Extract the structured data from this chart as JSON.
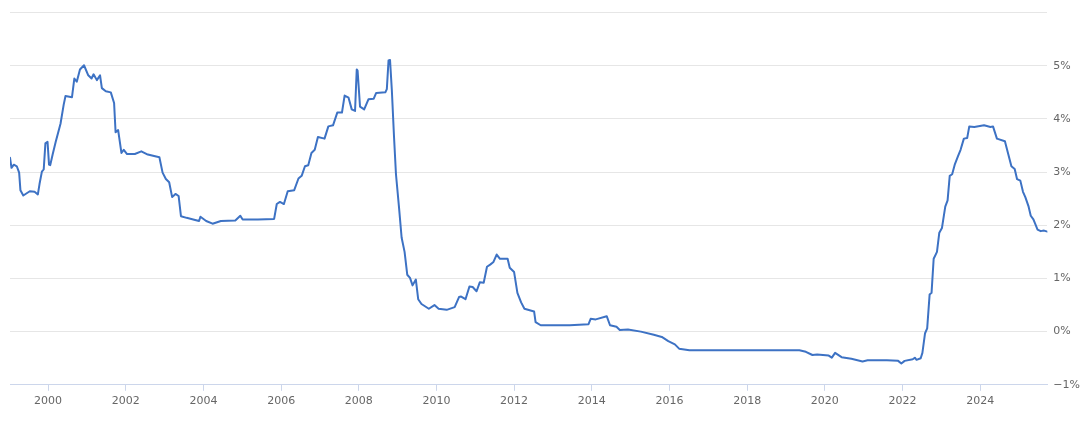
{
  "chart_data": {
    "type": "line",
    "color": "#3d72c4",
    "marker": "none",
    "line_style": "solid",
    "grid": "y",
    "xlim": [
      "1999-01-08",
      "2025-09-24"
    ],
    "xticks": [
      "2000",
      "2002",
      "2004",
      "2006",
      "2008",
      "2010",
      "2012",
      "2014",
      "2016",
      "2018",
      "2020",
      "2022",
      "2024"
    ],
    "ylim": [
      -1,
      6
    ],
    "yticks": [
      {
        "value": -1,
        "label": "−1%"
      },
      {
        "value": 0,
        "label": "0%"
      },
      {
        "value": 1,
        "label": "1%"
      },
      {
        "value": 2,
        "label": "2%"
      },
      {
        "value": 3,
        "label": "3%"
      },
      {
        "value": 4,
        "label": "4%"
      },
      {
        "value": 5,
        "label": "5%"
      },
      {
        "value": 6,
        "label": null
      }
    ],
    "x": [
      "1999-01-08",
      "1999-01-22",
      "1999-02-13",
      "1999-03-13",
      "1999-04-04",
      "1999-04-16",
      "1999-05-13",
      "1999-07-13",
      "1999-08-27",
      "1999-09-27",
      "1999-10-13",
      "1999-11-04",
      "1999-11-21",
      "1999-12-07",
      "1999-12-27",
      "2000-01-10",
      "2000-01-21",
      "2000-02-13",
      "2000-03-13",
      "2000-04-27",
      "2000-05-27",
      "2000-06-13",
      "2000-08-13",
      "2000-09-04",
      "2000-09-27",
      "2000-10-27",
      "2000-12-04",
      "2001-01-13",
      "2001-02-13",
      "2001-03-04",
      "2001-04-04",
      "2001-05-04",
      "2001-05-21",
      "2001-06-27",
      "2001-08-13",
      "2001-09-13",
      "2001-09-27",
      "2001-10-21",
      "2001-11-21",
      "2001-12-13",
      "2002-01-13",
      "2002-03-27",
      "2002-05-27",
      "2002-07-27",
      "2002-11-13",
      "2002-12-13",
      "2003-01-13",
      "2003-02-13",
      "2003-03-13",
      "2003-04-13",
      "2003-05-13",
      "2003-06-04",
      "2003-07-27",
      "2003-09-27",
      "2003-11-21",
      "2003-12-04",
      "2004-01-27",
      "2004-03-27",
      "2004-06-13",
      "2004-10-27",
      "2004-12-13",
      "2005-01-04",
      "2005-05-27",
      "2005-10-27",
      "2005-11-21",
      "2005-12-21",
      "2006-01-27",
      "2006-03-04",
      "2006-05-04",
      "2006-06-13",
      "2006-07-13",
      "2006-08-13",
      "2006-09-13",
      "2006-10-13",
      "2006-11-13",
      "2006-12-13",
      "2007-02-13",
      "2007-03-21",
      "2007-05-04",
      "2007-06-13",
      "2007-07-27",
      "2007-08-21",
      "2007-09-27",
      "2007-10-27",
      "2007-11-27",
      "2007-12-13",
      "2007-12-21",
      "2008-01-13",
      "2008-02-21",
      "2008-04-01",
      "2008-05-21",
      "2008-06-13",
      "2008-09-07",
      "2008-09-21",
      "2008-10-07",
      "2008-10-21",
      "2008-11-07",
      "2008-11-27",
      "2008-12-16",
      "2009-01-13",
      "2009-02-07",
      "2009-03-07",
      "2009-04-01",
      "2009-04-27",
      "2009-05-21",
      "2009-06-21",
      "2009-07-13",
      "2009-08-13",
      "2009-10-21",
      "2009-12-13",
      "2010-01-21",
      "2010-04-07",
      "2010-06-21",
      "2010-08-01",
      "2010-08-21",
      "2010-10-01",
      "2010-11-07",
      "2010-12-07",
      "2011-01-13",
      "2011-02-13",
      "2011-03-21",
      "2011-04-21",
      "2011-05-21",
      "2011-06-21",
      "2011-07-21",
      "2011-08-21",
      "2011-11-01",
      "2011-11-21",
      "2012-01-01",
      "2012-02-01",
      "2012-03-07",
      "2012-04-07",
      "2012-07-07",
      "2012-07-21",
      "2012-09-07",
      "2013-06-07",
      "2013-12-01",
      "2013-12-21",
      "2014-02-07",
      "2014-05-21",
      "2014-06-21",
      "2014-08-21",
      "2014-09-21",
      "2014-12-07",
      "2015-04-07",
      "2015-08-07",
      "2015-10-21",
      "2015-12-21",
      "2016-02-21",
      "2016-04-01",
      "2016-07-07",
      "2018-01-01",
      "2019-05-07",
      "2019-07-07",
      "2019-09-07",
      "2019-10-21",
      "2020-02-07",
      "2020-03-07",
      "2020-04-07",
      "2020-06-07",
      "2020-09-07",
      "2020-12-21",
      "2021-02-07",
      "2021-08-07",
      "2021-11-21",
      "2021-12-21",
      "2022-01-21",
      "2022-04-07",
      "2022-04-27",
      "2022-05-13",
      "2022-06-21",
      "2022-07-07",
      "2022-08-01",
      "2022-08-21",
      "2022-09-13",
      "2022-10-01",
      "2022-10-21",
      "2022-11-21",
      "2022-12-13",
      "2023-01-07",
      "2023-02-07",
      "2023-03-01",
      "2023-03-21",
      "2023-04-13",
      "2023-05-07",
      "2023-06-07",
      "2023-07-01",
      "2023-08-01",
      "2023-09-01",
      "2023-09-21",
      "2023-11-07",
      "2024-02-07",
      "2024-04-07",
      "2024-05-01",
      "2024-06-07",
      "2024-08-21",
      "2024-10-21",
      "2024-11-21",
      "2024-12-13",
      "2025-01-13",
      "2025-02-07",
      "2025-03-01",
      "2025-04-01",
      "2025-04-21",
      "2025-05-16",
      "2025-06-24",
      "2025-07-24",
      "2025-08-24",
      "2025-09-24"
    ],
    "values": [
      3.27,
      3.08,
      3.14,
      3.11,
      2.99,
      2.66,
      2.56,
      2.64,
      2.63,
      2.58,
      2.78,
      3.01,
      3.05,
      3.54,
      3.57,
      3.14,
      3.13,
      3.33,
      3.57,
      3.91,
      4.27,
      4.43,
      4.41,
      4.76,
      4.7,
      4.93,
      5.01,
      4.82,
      4.76,
      4.84,
      4.73,
      4.82,
      4.58,
      4.52,
      4.5,
      4.3,
      3.75,
      3.79,
      3.36,
      3.42,
      3.34,
      3.34,
      3.39,
      3.33,
      3.28,
      2.99,
      2.87,
      2.81,
      2.53,
      2.59,
      2.55,
      2.17,
      2.14,
      2.11,
      2.08,
      2.16,
      2.08,
      2.03,
      2.08,
      2.09,
      2.18,
      2.11,
      2.11,
      2.12,
      2.4,
      2.44,
      2.4,
      2.64,
      2.66,
      2.88,
      2.93,
      3.11,
      3.13,
      3.36,
      3.42,
      3.66,
      3.63,
      3.86,
      3.88,
      4.12,
      4.12,
      4.44,
      4.4,
      4.18,
      4.15,
      4.93,
      4.91,
      4.23,
      4.18,
      4.37,
      4.38,
      4.49,
      4.5,
      4.56,
      5.1,
      5.11,
      4.55,
      3.69,
      2.96,
      2.35,
      1.77,
      1.5,
      1.07,
      1.01,
      0.87,
      0.98,
      0.61,
      0.52,
      0.43,
      0.5,
      0.43,
      0.41,
      0.46,
      0.65,
      0.66,
      0.61,
      0.85,
      0.84,
      0.76,
      0.93,
      0.92,
      1.22,
      1.26,
      1.31,
      1.45,
      1.37,
      1.37,
      1.2,
      1.12,
      0.73,
      0.55,
      0.43,
      0.38,
      0.18,
      0.12,
      0.12,
      0.14,
      0.24,
      0.23,
      0.29,
      0.12,
      0.09,
      0.03,
      0.04,
      0.0,
      -0.06,
      -0.1,
      -0.18,
      -0.24,
      -0.32,
      -0.35,
      -0.35,
      -0.35,
      -0.38,
      -0.44,
      -0.43,
      -0.45,
      -0.49,
      -0.4,
      -0.48,
      -0.51,
      -0.56,
      -0.54,
      -0.54,
      -0.55,
      -0.6,
      -0.55,
      -0.52,
      -0.49,
      -0.53,
      -0.5,
      -0.4,
      -0.03,
      0.06,
      0.7,
      0.73,
      1.37,
      1.5,
      1.86,
      1.95,
      2.35,
      2.47,
      2.93,
      2.96,
      3.14,
      3.3,
      3.42,
      3.63,
      3.64,
      3.86,
      3.85,
      3.88,
      3.85,
      3.86,
      3.63,
      3.58,
      3.11,
      3.06,
      2.87,
      2.84,
      2.63,
      2.53,
      2.35,
      2.18,
      2.11,
      1.92,
      1.89,
      1.9,
      1.88
    ]
  }
}
